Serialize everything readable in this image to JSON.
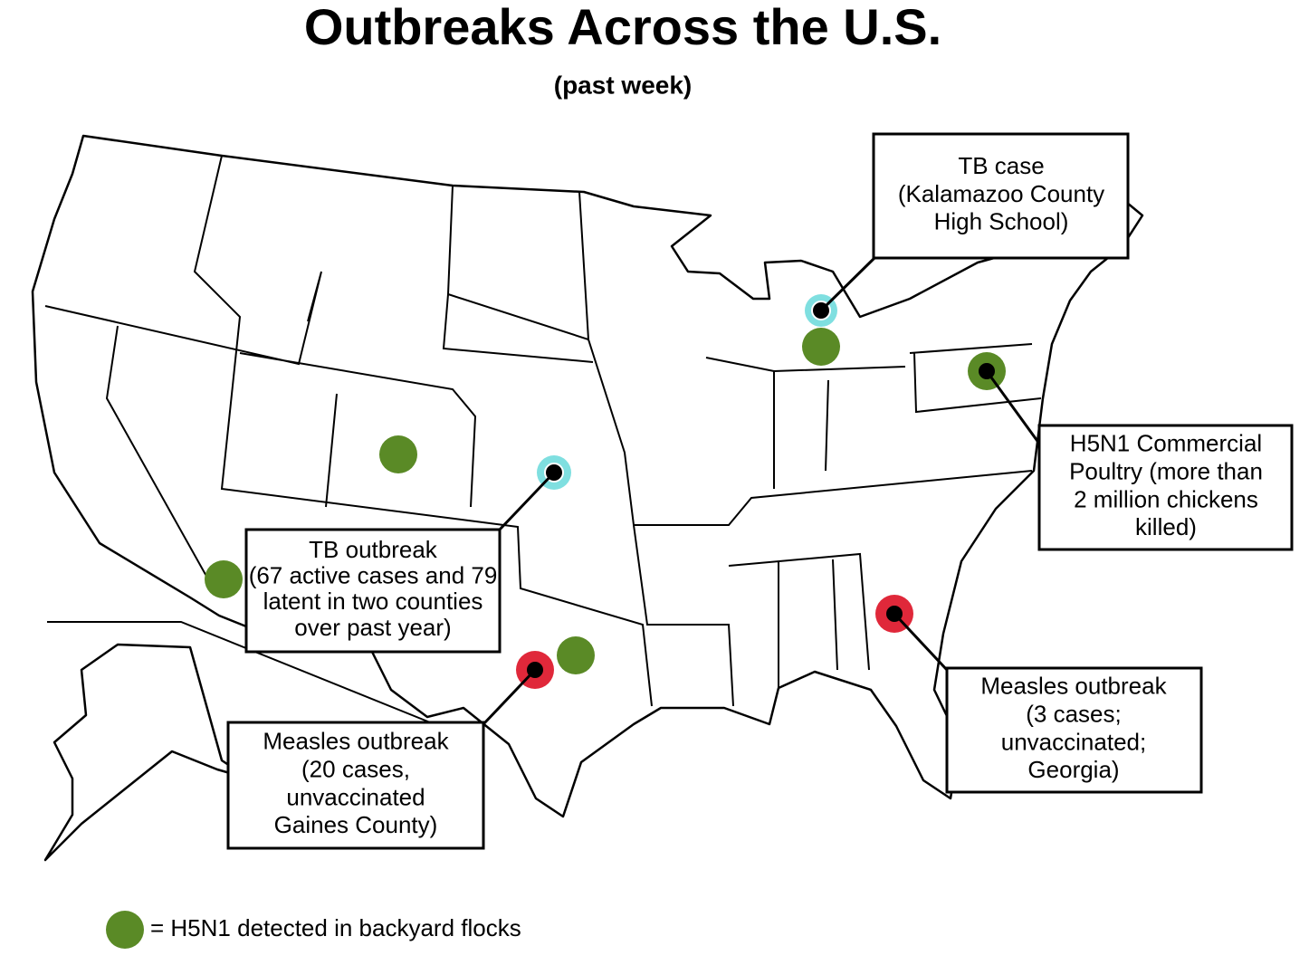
{
  "title": "Outbreaks Across the U.S.",
  "subtitle": "(past week)",
  "callouts": [
    {
      "lines": [
        "TB case",
        "(Kalamazoo County",
        "High School)"
      ]
    },
    {
      "lines": [
        "H5N1 Commercial",
        "Poultry (more than",
        "2 million chickens",
        "killed)"
      ]
    },
    {
      "lines": [
        "TB outbreak",
        "(67 active cases and 79",
        "latent in two counties",
        "over past year)"
      ]
    },
    {
      "lines": [
        "Measles outbreak",
        "(20 cases,",
        "unvaccinated",
        "Gaines County)"
      ]
    },
    {
      "lines": [
        "Measles outbreak",
        "(3 cases;",
        "unvaccinated;",
        "Georgia)"
      ]
    }
  ],
  "legend": {
    "label": "= H5N1 detected in backyard flocks"
  }
}
